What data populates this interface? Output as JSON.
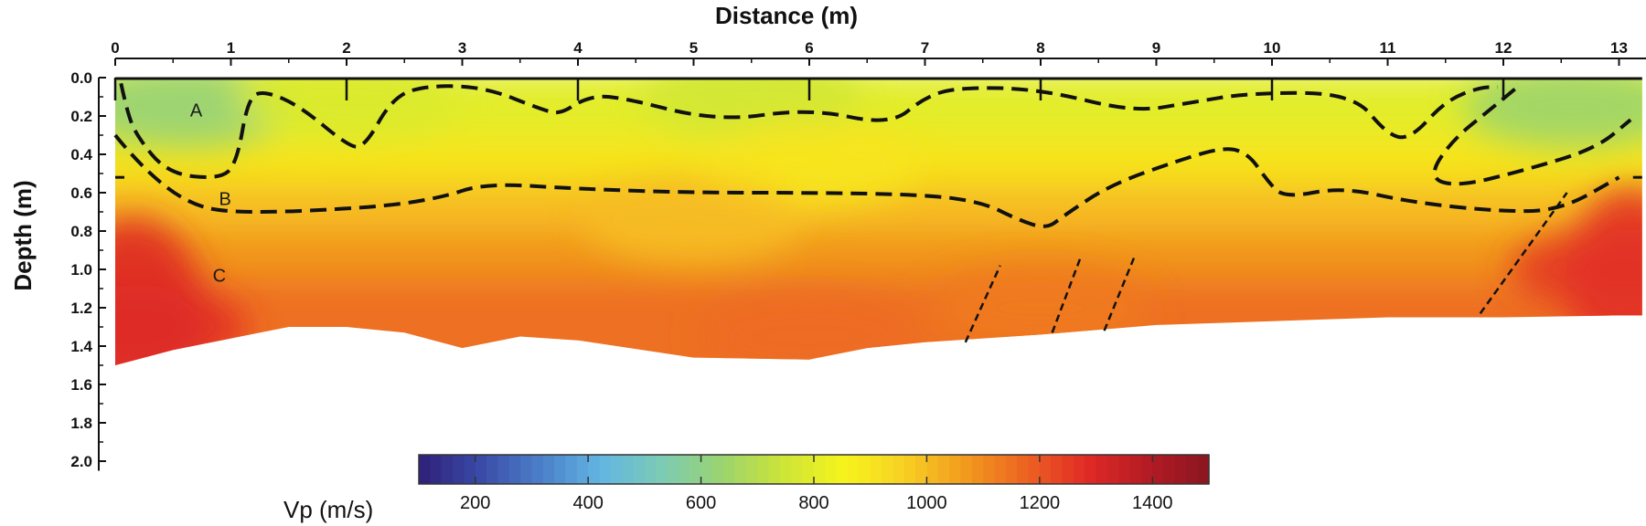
{
  "chart_data": {
    "type": "heatmap",
    "title": "",
    "xlabel": "Distance (m)",
    "ylabel": "Depth (m)",
    "x_axis_position": "top",
    "xlim": [
      0,
      13.2
    ],
    "ylim": [
      0,
      2.0
    ],
    "y_inverted": true,
    "x_ticks": [
      0,
      1,
      2,
      3,
      4,
      5,
      6,
      7,
      8,
      9,
      10,
      11,
      12,
      13
    ],
    "x_tick_labels": [
      "0",
      "1",
      "2",
      "3",
      "4",
      "5",
      "6",
      "7",
      "8",
      "9",
      "10",
      "11",
      "12",
      "13"
    ],
    "y_ticks": [
      0.0,
      0.2,
      0.4,
      0.6,
      0.8,
      1.0,
      1.2,
      1.4,
      1.6,
      1.8,
      2.0
    ],
    "y_tick_labels": [
      "0.0",
      "0.2",
      "0.4",
      "0.6",
      "0.8",
      "1.0",
      "1.2",
      "1.4",
      "1.6",
      "1.8",
      "2.0"
    ],
    "colorbar": {
      "title": "Vp (m/s)",
      "range": [
        100,
        1500
      ],
      "ticks": [
        200,
        400,
        600,
        800,
        1000,
        1200,
        1400
      ],
      "tick_labels": [
        "200",
        "400",
        "600",
        "800",
        "1000",
        "1200",
        "1400"
      ],
      "colors": [
        "#2e1f7a",
        "#3a4aa6",
        "#4b7fc9",
        "#62b6e2",
        "#7ccbb4",
        "#9bd46e",
        "#cde537",
        "#f6f41c",
        "#f8cf24",
        "#f29a1d",
        "#ec6222",
        "#e02a25",
        "#b31b24",
        "#8a1520"
      ]
    },
    "receivers_x": [
      0,
      2,
      4,
      6,
      8,
      10,
      12
    ],
    "section_bottom": {
      "x": [
        0,
        0.5,
        1.0,
        1.5,
        2.0,
        2.5,
        3.0,
        3.5,
        4.0,
        5.0,
        6.0,
        6.5,
        7.0,
        8.0,
        9.0,
        10.0,
        11.0,
        12.0,
        13.0
      ],
      "depth": [
        1.5,
        1.42,
        1.36,
        1.3,
        1.3,
        1.33,
        1.41,
        1.35,
        1.37,
        1.46,
        1.47,
        1.41,
        1.38,
        1.34,
        1.29,
        1.27,
        1.25,
        1.25,
        1.24
      ]
    },
    "layers": [
      {
        "label": "A",
        "x": 0.7,
        "depth": 0.17,
        "velocity_range": "~600-800"
      },
      {
        "label": "B",
        "x": 0.95,
        "depth": 0.63,
        "velocity_range": "~900-1000"
      },
      {
        "label": "C",
        "x": 0.9,
        "depth": 1.03,
        "velocity_range": "~1100-1300"
      }
    ],
    "velocity_points": [
      {
        "x": 0.6,
        "depth": 0.15,
        "vp": 620
      },
      {
        "x": 12.6,
        "depth": 0.15,
        "vp": 640
      },
      {
        "x": 5.5,
        "depth": 0.1,
        "vp": 760
      },
      {
        "x": 2.0,
        "depth": 0.1,
        "vp": 780
      },
      {
        "x": 6.0,
        "depth": 0.45,
        "vp": 900
      },
      {
        "x": 5.0,
        "depth": 0.75,
        "vp": 1000
      },
      {
        "x": 0.2,
        "depth": 1.3,
        "vp": 1280
      },
      {
        "x": 13.0,
        "depth": 1.0,
        "vp": 1260
      },
      {
        "x": 6.0,
        "depth": 1.35,
        "vp": 1160
      },
      {
        "x": 8.0,
        "depth": 1.2,
        "vp": 1130
      }
    ],
    "interfaces": [
      {
        "name": "A-B boundary",
        "style": "dashed",
        "points": [
          [
            0.05,
            0.03
          ],
          [
            0.1,
            0.17
          ],
          [
            0.18,
            0.3
          ],
          [
            0.45,
            0.5
          ],
          [
            0.9,
            0.53
          ],
          [
            1.05,
            0.45
          ],
          [
            1.15,
            0.1
          ],
          [
            1.3,
            0.07
          ],
          [
            1.6,
            0.15
          ],
          [
            2.0,
            0.35
          ],
          [
            2.15,
            0.37
          ],
          [
            2.4,
            0.1
          ],
          [
            2.7,
            0.04
          ],
          [
            3.2,
            0.05
          ],
          [
            3.7,
            0.17
          ],
          [
            3.85,
            0.19
          ],
          [
            4.05,
            0.11
          ],
          [
            4.3,
            0.09
          ],
          [
            5.2,
            0.23
          ],
          [
            6.0,
            0.16
          ],
          [
            6.7,
            0.25
          ],
          [
            7.0,
            0.1
          ],
          [
            7.3,
            0.05
          ],
          [
            8.0,
            0.06
          ],
          [
            8.8,
            0.18
          ],
          [
            9.3,
            0.13
          ],
          [
            9.8,
            0.08
          ],
          [
            10.7,
            0.08
          ],
          [
            11.0,
            0.3
          ],
          [
            11.2,
            0.32
          ],
          [
            11.5,
            0.12
          ],
          [
            11.8,
            0.05
          ],
          [
            11.95,
            0.05
          ]
        ]
      },
      {
        "name": "A-B boundary (east lobe)",
        "style": "dashed",
        "points": [
          [
            12.1,
            0.06
          ],
          [
            11.9,
            0.16
          ],
          [
            11.55,
            0.33
          ],
          [
            11.35,
            0.52
          ],
          [
            11.6,
            0.57
          ],
          [
            12.2,
            0.48
          ],
          [
            12.8,
            0.37
          ],
          [
            13.1,
            0.22
          ]
        ]
      },
      {
        "name": "B-C boundary",
        "style": "dashed",
        "points": [
          [
            0.0,
            0.3
          ],
          [
            0.2,
            0.45
          ],
          [
            0.6,
            0.65
          ],
          [
            1.0,
            0.71
          ],
          [
            2.2,
            0.68
          ],
          [
            2.8,
            0.63
          ],
          [
            3.2,
            0.55
          ],
          [
            4.0,
            0.58
          ],
          [
            5.0,
            0.6
          ],
          [
            6.0,
            0.6
          ],
          [
            7.0,
            0.61
          ],
          [
            7.5,
            0.65
          ],
          [
            7.8,
            0.74
          ],
          [
            8.05,
            0.79
          ],
          [
            8.2,
            0.72
          ],
          [
            8.6,
            0.56
          ],
          [
            9.2,
            0.43
          ],
          [
            9.6,
            0.36
          ],
          [
            9.8,
            0.4
          ],
          [
            9.95,
            0.53
          ],
          [
            10.1,
            0.63
          ],
          [
            10.6,
            0.57
          ],
          [
            11.2,
            0.65
          ],
          [
            12.0,
            0.7
          ],
          [
            12.5,
            0.69
          ],
          [
            13.0,
            0.52
          ]
        ]
      }
    ],
    "faults": [
      {
        "x1": 7.35,
        "d1": 1.38,
        "x2": 7.65,
        "d2": 0.98
      },
      {
        "x1": 8.1,
        "d1": 1.33,
        "x2": 8.35,
        "d2": 0.93
      },
      {
        "x1": 8.55,
        "d1": 1.32,
        "x2": 8.82,
        "d2": 0.92
      },
      {
        "x1": 11.8,
        "d1": 1.23,
        "x2": 12.55,
        "d2": 0.6
      }
    ]
  }
}
